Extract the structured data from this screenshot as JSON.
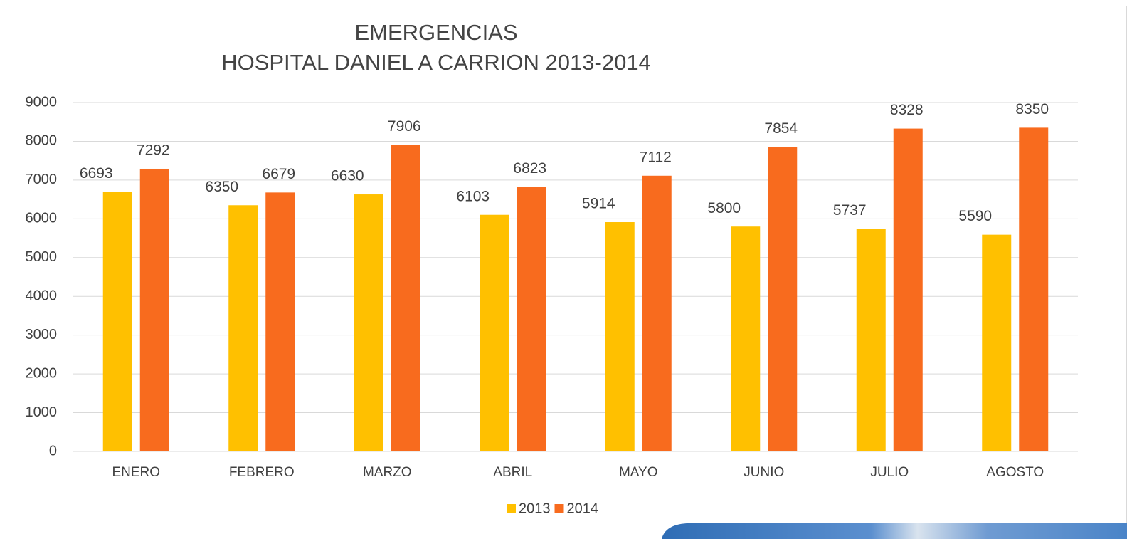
{
  "chart_data": {
    "type": "bar",
    "title": [
      "EMERGENCIAS",
      "HOSPITAL DANIEL A CARRION 2013-2014"
    ],
    "categories": [
      "ENERO",
      "FEBRERO",
      "MARZO",
      "ABRIL",
      "MAYO",
      "JUNIO",
      "JULIO",
      "AGOSTO"
    ],
    "series": [
      {
        "name": "2013",
        "color": "#ffc000",
        "values": [
          6693,
          6350,
          6630,
          6103,
          5914,
          5800,
          5737,
          5590
        ]
      },
      {
        "name": "2014",
        "color": "#f86b1e",
        "values": [
          7292,
          6679,
          7906,
          6823,
          7112,
          7854,
          8328,
          8350
        ]
      }
    ],
    "ylim": [
      0,
      9000
    ],
    "yticks": [
      0,
      1000,
      2000,
      3000,
      4000,
      5000,
      6000,
      7000,
      8000,
      9000
    ],
    "grid": true,
    "legend": "bottom"
  }
}
